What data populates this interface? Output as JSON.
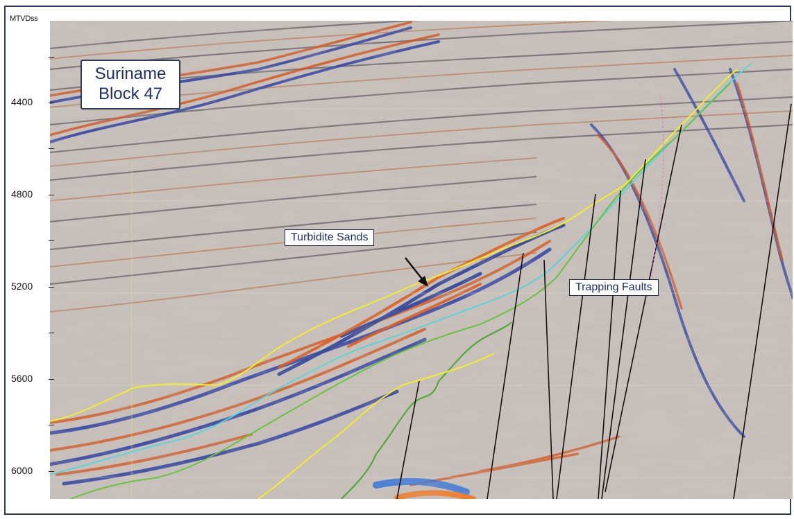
{
  "axis": {
    "unit_label": "MTVDss",
    "ticks": [
      "4400",
      "4800",
      "5200",
      "5600",
      "6000"
    ]
  },
  "title": {
    "line1": "Suriname",
    "line2": "Block 47"
  },
  "callouts": {
    "turbidite": "Turbidite Sands",
    "faults": "Trapping Faults"
  },
  "colors": {
    "background": "#c8c0bb",
    "trough_blue": "#2a3f9a",
    "peak_orange": "#d4551e",
    "horizon_yellow": "#f2ee2a",
    "horizon_cyan": "#5fd3d8",
    "horizon_green": "#69c240",
    "fault_line": "#111111",
    "frame": "#2b3a55"
  }
}
